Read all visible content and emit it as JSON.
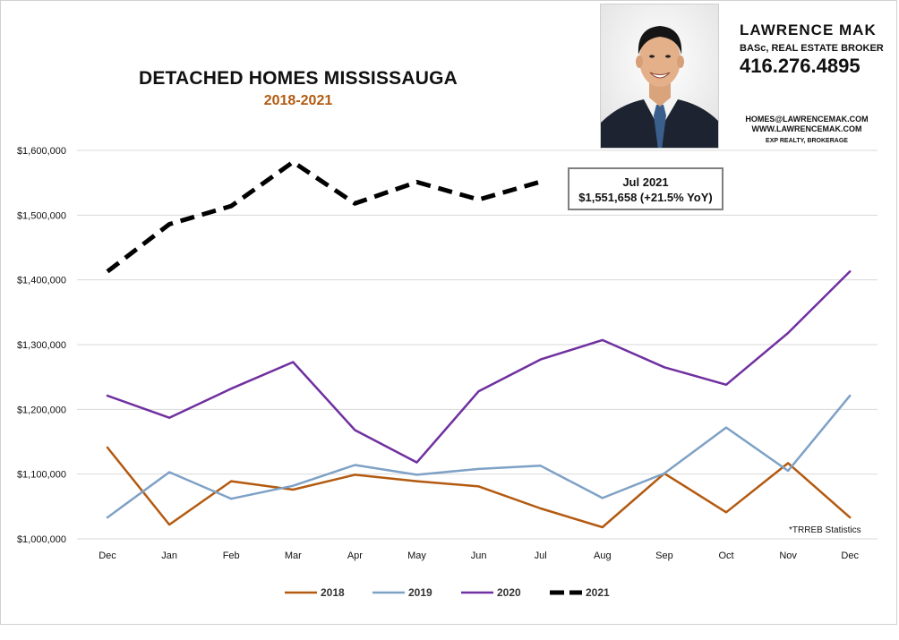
{
  "header": {
    "title": "DETACHED HOMES MISSISSAUGA",
    "subtitle": "2018-2021"
  },
  "agent": {
    "name": "LAWRENCE MAK",
    "role": "BASc, REAL ESTATE BROKER",
    "phone": "416.276.4895",
    "email": "HOMES@LAWRENCEMAK.COM",
    "website": "WWW.LAWRENCEMAK.COM",
    "brokerage": "EXP REALTY, BROKERAGE"
  },
  "callout": {
    "line1": "Jul 2021",
    "line2": "$1,551,658  (+21.5%  YoY)"
  },
  "source_note": "*TRREB Statistics",
  "colors": {
    "2018": "#b35a10",
    "2019": "#7ea1c6",
    "2020": "#7030a0",
    "2021": "#000000",
    "gridline": "#d9d9d9",
    "subtitle": "#b35a10"
  },
  "chart_data": {
    "type": "line",
    "title": "DETACHED HOMES MISSISSAUGA",
    "subtitle": "2018-2021",
    "xlabel": "",
    "ylabel": "",
    "categories": [
      "Dec",
      "Jan",
      "Feb",
      "Mar",
      "Apr",
      "May",
      "Jun",
      "Jul",
      "Aug",
      "Sep",
      "Oct",
      "Nov",
      "Dec"
    ],
    "ylim": [
      1000000,
      1600000
    ],
    "yticks": [
      1000000,
      1100000,
      1200000,
      1300000,
      1400000,
      1500000,
      1600000
    ],
    "ytick_labels": [
      "$1,000,000",
      "$1,100,000",
      "$1,200,000",
      "$1,300,000",
      "$1,400,000",
      "$1,500,000",
      "$1,600,000"
    ],
    "grid": true,
    "legend_position": "bottom",
    "series": [
      {
        "name": "2018",
        "color": "#b35a10",
        "dashed": false,
        "values": [
          1141000,
          1022000,
          1089000,
          1076000,
          1099000,
          1089000,
          1081000,
          1047000,
          1018000,
          1101000,
          1041000,
          1117000,
          1033000
        ]
      },
      {
        "name": "2019",
        "color": "#7ea1c6",
        "dashed": false,
        "values": [
          1033000,
          1103000,
          1062000,
          1082000,
          1114000,
          1099000,
          1108000,
          1113000,
          1063000,
          1101000,
          1172000,
          1105000,
          1221000
        ]
      },
      {
        "name": "2020",
        "color": "#7030a0",
        "dashed": false,
        "values": [
          1221000,
          1187000,
          1232000,
          1273000,
          1168000,
          1118000,
          1228000,
          1277000,
          1307000,
          1265000,
          1238000,
          1318000,
          1413000
        ]
      },
      {
        "name": "2021",
        "color": "#000000",
        "dashed": true,
        "values": [
          1413000,
          1486000,
          1514000,
          1582000,
          1518000,
          1551000,
          1524000,
          1551658,
          null,
          null,
          null,
          null,
          null
        ]
      }
    ]
  }
}
